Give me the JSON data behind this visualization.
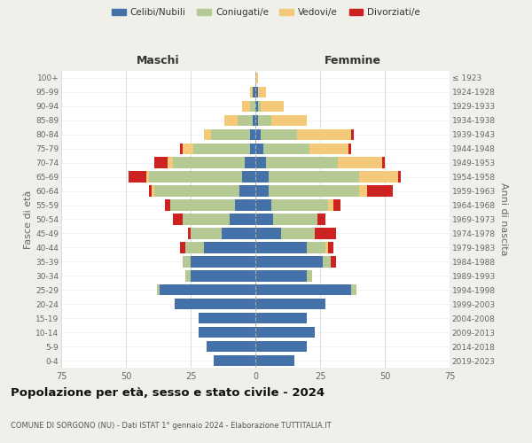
{
  "age_groups": [
    "0-4",
    "5-9",
    "10-14",
    "15-19",
    "20-24",
    "25-29",
    "30-34",
    "35-39",
    "40-44",
    "45-49",
    "50-54",
    "55-59",
    "60-64",
    "65-69",
    "70-74",
    "75-79",
    "80-84",
    "85-89",
    "90-94",
    "95-99",
    "100+"
  ],
  "birth_years": [
    "2019-2023",
    "2014-2018",
    "2009-2013",
    "2004-2008",
    "1999-2003",
    "1994-1998",
    "1989-1993",
    "1984-1988",
    "1979-1983",
    "1974-1978",
    "1969-1973",
    "1964-1968",
    "1959-1963",
    "1954-1958",
    "1949-1953",
    "1944-1948",
    "1939-1943",
    "1934-1938",
    "1929-1933",
    "1924-1928",
    "≤ 1923"
  ],
  "males": {
    "celibi": [
      16,
      19,
      22,
      22,
      31,
      37,
      25,
      25,
      20,
      13,
      10,
      8,
      6,
      5,
      4,
      2,
      2,
      1,
      0,
      1,
      0
    ],
    "coniugati": [
      0,
      0,
      0,
      0,
      0,
      1,
      2,
      3,
      7,
      12,
      18,
      25,
      33,
      36,
      28,
      22,
      15,
      6,
      2,
      0,
      0
    ],
    "vedovi": [
      0,
      0,
      0,
      0,
      0,
      0,
      0,
      0,
      0,
      0,
      0,
      0,
      1,
      1,
      2,
      4,
      3,
      5,
      3,
      1,
      0
    ],
    "divorziati": [
      0,
      0,
      0,
      0,
      0,
      0,
      0,
      0,
      2,
      1,
      4,
      2,
      1,
      7,
      5,
      1,
      0,
      0,
      0,
      0,
      0
    ]
  },
  "females": {
    "nubili": [
      15,
      20,
      23,
      20,
      27,
      37,
      20,
      26,
      20,
      10,
      7,
      6,
      5,
      5,
      4,
      3,
      2,
      1,
      1,
      1,
      0
    ],
    "coniugate": [
      0,
      0,
      0,
      0,
      0,
      2,
      2,
      3,
      7,
      13,
      17,
      22,
      35,
      35,
      28,
      18,
      14,
      5,
      1,
      0,
      0
    ],
    "vedove": [
      0,
      0,
      0,
      0,
      0,
      0,
      0,
      0,
      1,
      0,
      0,
      2,
      3,
      15,
      17,
      15,
      21,
      14,
      9,
      3,
      1
    ],
    "divorziate": [
      0,
      0,
      0,
      0,
      0,
      0,
      0,
      2,
      2,
      8,
      3,
      3,
      10,
      1,
      1,
      1,
      1,
      0,
      0,
      0,
      0
    ]
  },
  "colors": {
    "celibi": "#4472a8",
    "coniugati": "#b5c994",
    "vedovi": "#f5c97a",
    "divorziati": "#cc2222"
  },
  "xlim": 75,
  "title": "Popolazione per età, sesso e stato civile - 2024",
  "subtitle": "COMUNE DI SORGONO (NU) - Dati ISTAT 1° gennaio 2024 - Elaborazione TUTTITALIA.IT",
  "ylabel_left": "Fasce di età",
  "ylabel_right": "Anni di nascita",
  "xlabel_left": "Maschi",
  "xlabel_right": "Femmine",
  "bg_color": "#f0f0eb",
  "plot_bg": "#ffffff"
}
